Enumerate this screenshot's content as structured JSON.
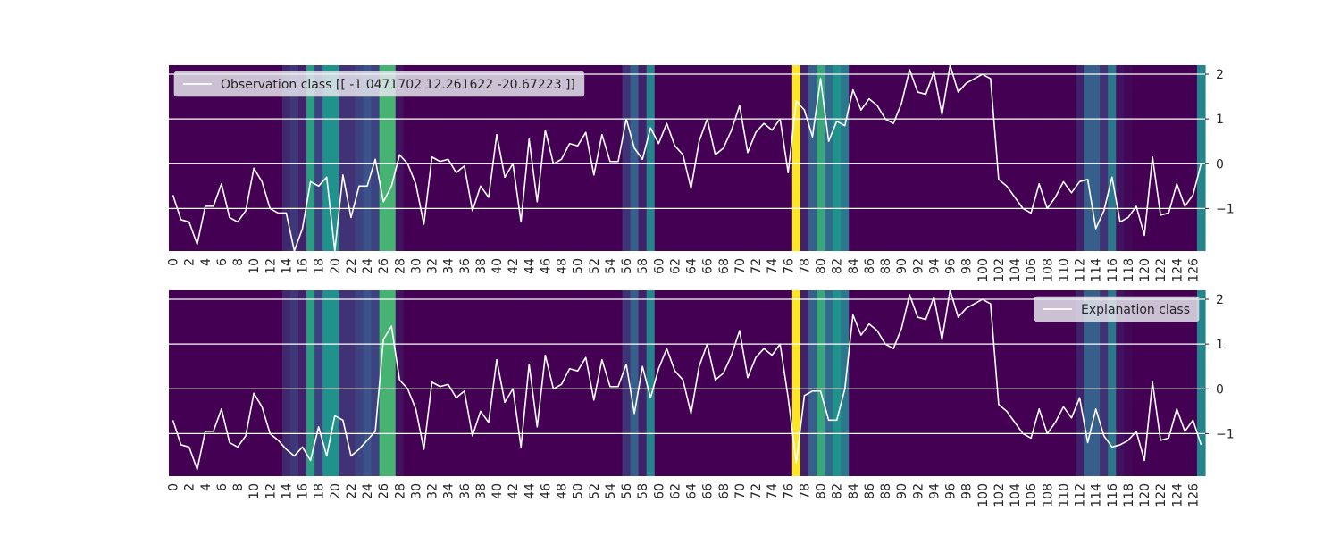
{
  "chart_data": [
    {
      "type": "line",
      "background": "heatmap",
      "legend": "Observation class [[ -1.0471702  12.261622  -20.67223  ]]",
      "legend_position": "upper-left",
      "x": [
        0,
        1,
        2,
        3,
        4,
        5,
        6,
        7,
        8,
        9,
        10,
        11,
        12,
        13,
        14,
        15,
        16,
        17,
        18,
        19,
        20,
        21,
        22,
        23,
        24,
        25,
        26,
        27,
        28,
        29,
        30,
        31,
        32,
        33,
        34,
        35,
        36,
        37,
        38,
        39,
        40,
        41,
        42,
        43,
        44,
        45,
        46,
        47,
        48,
        49,
        50,
        51,
        52,
        53,
        54,
        55,
        56,
        57,
        58,
        59,
        60,
        61,
        62,
        63,
        64,
        65,
        66,
        67,
        68,
        69,
        70,
        71,
        72,
        73,
        74,
        75,
        76,
        77,
        78,
        79,
        80,
        81,
        82,
        83,
        84,
        85,
        86,
        87,
        88,
        89,
        90,
        91,
        92,
        93,
        94,
        95,
        96,
        97,
        98,
        99,
        100,
        101,
        102,
        103,
        104,
        105,
        106,
        107,
        108,
        109,
        110,
        111,
        112,
        113,
        114,
        115,
        116,
        117,
        118,
        119,
        120,
        121,
        122,
        123,
        124,
        125,
        126,
        127
      ],
      "y": [
        -0.7,
        -1.25,
        -1.3,
        -1.8,
        -0.95,
        -0.95,
        -0.45,
        -1.2,
        -1.3,
        -1.05,
        -0.1,
        -0.4,
        -1.0,
        -1.1,
        -1.1,
        -1.95,
        -1.45,
        -0.4,
        -0.5,
        -0.3,
        -2.0,
        -0.25,
        -1.2,
        -0.5,
        -0.5,
        0.1,
        -0.85,
        -0.5,
        0.2,
        0.0,
        -0.45,
        -1.35,
        0.15,
        0.05,
        0.1,
        -0.2,
        -0.05,
        -1.05,
        -0.5,
        -0.75,
        0.65,
        -0.3,
        0.0,
        -1.3,
        0.55,
        -0.85,
        0.75,
        0.0,
        0.1,
        0.45,
        0.4,
        0.7,
        -0.25,
        0.65,
        0.05,
        0.05,
        1.0,
        0.35,
        0.1,
        0.8,
        0.45,
        0.9,
        0.4,
        0.2,
        -0.55,
        0.5,
        1.0,
        0.2,
        0.35,
        0.75,
        1.3,
        0.25,
        0.7,
        0.9,
        0.75,
        1.0,
        -0.2,
        1.4,
        1.2,
        0.6,
        1.9,
        0.5,
        0.95,
        0.85,
        1.65,
        1.2,
        1.45,
        1.3,
        1.0,
        0.9,
        1.35,
        2.1,
        1.6,
        1.55,
        2.05,
        1.1,
        2.25,
        1.6,
        1.8,
        1.9,
        2.0,
        1.9,
        -0.35,
        -0.5,
        -0.75,
        -1.0,
        -1.1,
        -0.45,
        -1.0,
        -0.75,
        -0.4,
        -0.65,
        -0.4,
        -0.35,
        -1.45,
        -1.05,
        -0.3,
        -1.3,
        -1.2,
        -0.95,
        -1.6,
        0.15,
        -1.15,
        -1.1,
        -0.45,
        -0.95,
        -0.7,
        0.0
      ],
      "heat": [
        0,
        0,
        0,
        0,
        0,
        0,
        0,
        0,
        0,
        0,
        0,
        0,
        0,
        0,
        0.12,
        0.17,
        0.1,
        0.55,
        0.2,
        0.5,
        0.5,
        0.15,
        0.15,
        0.2,
        0.25,
        0.2,
        0.65,
        0.65,
        0.05,
        0,
        0,
        0,
        0,
        0,
        0,
        0,
        0,
        0,
        0,
        0,
        0,
        0,
        0,
        0,
        0,
        0,
        0,
        0,
        0,
        0,
        0,
        0,
        0,
        0,
        0,
        0,
        0.15,
        0.3,
        0.1,
        0.45,
        0,
        0,
        0,
        0,
        0,
        0,
        0,
        0,
        0,
        0,
        0,
        0,
        0,
        0,
        0,
        0,
        0,
        1.0,
        0.1,
        0.3,
        0.6,
        0.35,
        0.5,
        0.4,
        0,
        0,
        0,
        0,
        0,
        0,
        0,
        0,
        0,
        0,
        0,
        0,
        0,
        0,
        0,
        0,
        0,
        0,
        0,
        0,
        0,
        0,
        0,
        0,
        0,
        0,
        0,
        0,
        0.1,
        0.3,
        0.3,
        0.15,
        0.4,
        0.05,
        0.02,
        0,
        0,
        0,
        0,
        0,
        0,
        0,
        0,
        0.45
      ],
      "xticks": [
        "0",
        "2",
        "4",
        "6",
        "8",
        "10",
        "12",
        "14",
        "16",
        "18",
        "20",
        "22",
        "24",
        "26",
        "28",
        "30",
        "32",
        "34",
        "36",
        "38",
        "40",
        "42",
        "44",
        "46",
        "48",
        "50",
        "52",
        "54",
        "56",
        "58",
        "60",
        "62",
        "64",
        "66",
        "68",
        "70",
        "72",
        "74",
        "76",
        "78",
        "80",
        "82",
        "84",
        "86",
        "88",
        "90",
        "92",
        "94",
        "96",
        "98",
        "100",
        "102",
        "104",
        "106",
        "108",
        "110",
        "112",
        "114",
        "116",
        "118",
        "120",
        "122",
        "124",
        "126"
      ],
      "yticks": [
        "2",
        "1",
        "0",
        "−1"
      ],
      "ytick_values": [
        2,
        1,
        0,
        -1
      ],
      "xlim": [
        0,
        128
      ],
      "ylim": [
        -1.95,
        2.2
      ],
      "colormap": "viridis",
      "line_color": "#ffffff"
    },
    {
      "type": "line",
      "background": "heatmap",
      "legend": "Explanation class",
      "legend_position": "upper-right",
      "x": [
        0,
        1,
        2,
        3,
        4,
        5,
        6,
        7,
        8,
        9,
        10,
        11,
        12,
        13,
        14,
        15,
        16,
        17,
        18,
        19,
        20,
        21,
        22,
        23,
        24,
        25,
        26,
        27,
        28,
        29,
        30,
        31,
        32,
        33,
        34,
        35,
        36,
        37,
        38,
        39,
        40,
        41,
        42,
        43,
        44,
        45,
        46,
        47,
        48,
        49,
        50,
        51,
        52,
        53,
        54,
        55,
        56,
        57,
        58,
        59,
        60,
        61,
        62,
        63,
        64,
        65,
        66,
        67,
        68,
        69,
        70,
        71,
        72,
        73,
        74,
        75,
        76,
        77,
        78,
        79,
        80,
        81,
        82,
        83,
        84,
        85,
        86,
        87,
        88,
        89,
        90,
        91,
        92,
        93,
        94,
        95,
        96,
        97,
        98,
        99,
        100,
        101,
        102,
        103,
        104,
        105,
        106,
        107,
        108,
        109,
        110,
        111,
        112,
        113,
        114,
        115,
        116,
        117,
        118,
        119,
        120,
        121,
        122,
        123,
        124,
        125,
        126,
        127
      ],
      "y": [
        -0.7,
        -1.25,
        -1.3,
        -1.8,
        -0.95,
        -0.95,
        -0.45,
        -1.2,
        -1.3,
        -1.05,
        -0.1,
        -0.4,
        -1.0,
        -1.15,
        -1.35,
        -1.5,
        -1.3,
        -1.6,
        -0.85,
        -1.5,
        -0.6,
        -0.7,
        -1.5,
        -1.35,
        -1.15,
        -0.95,
        1.1,
        1.4,
        0.2,
        0.0,
        -0.45,
        -1.35,
        0.15,
        0.05,
        0.1,
        -0.2,
        -0.05,
        -1.05,
        -0.5,
        -0.75,
        0.65,
        -0.3,
        0.0,
        -1.3,
        0.55,
        -0.85,
        0.75,
        0.0,
        0.1,
        0.45,
        0.4,
        0.7,
        -0.25,
        0.65,
        0.05,
        0.05,
        0.55,
        -0.55,
        0.5,
        -0.2,
        0.45,
        0.9,
        0.4,
        0.2,
        -0.55,
        0.5,
        1.0,
        0.2,
        0.35,
        0.75,
        1.3,
        0.25,
        0.7,
        0.9,
        0.75,
        1.0,
        -0.2,
        -1.65,
        -0.15,
        -0.05,
        -0.05,
        -0.7,
        -0.7,
        0.0,
        1.65,
        1.2,
        1.45,
        1.3,
        1.0,
        0.9,
        1.35,
        2.1,
        1.6,
        1.55,
        2.05,
        1.1,
        2.25,
        1.6,
        1.8,
        1.9,
        2.0,
        1.9,
        -0.35,
        -0.5,
        -0.75,
        -1.0,
        -1.1,
        -0.45,
        -1.0,
        -0.75,
        -0.4,
        -0.65,
        -0.2,
        -1.2,
        -0.45,
        -1.05,
        -1.3,
        -1.25,
        -1.15,
        -0.95,
        -1.6,
        0.15,
        -1.15,
        -1.1,
        -0.45,
        -0.95,
        -0.7,
        -1.25
      ],
      "heat": [
        0,
        0,
        0,
        0,
        0,
        0,
        0,
        0,
        0,
        0,
        0,
        0,
        0,
        0,
        0.12,
        0.17,
        0.1,
        0.55,
        0.2,
        0.5,
        0.5,
        0.15,
        0.15,
        0.2,
        0.25,
        0.2,
        0.65,
        0.65,
        0.05,
        0,
        0,
        0,
        0,
        0,
        0,
        0,
        0,
        0,
        0,
        0,
        0,
        0,
        0,
        0,
        0,
        0,
        0,
        0,
        0,
        0,
        0,
        0,
        0,
        0,
        0,
        0,
        0.15,
        0.3,
        0.1,
        0.45,
        0,
        0,
        0,
        0,
        0,
        0,
        0,
        0,
        0,
        0,
        0,
        0,
        0,
        0,
        0,
        0,
        0,
        1.0,
        0.1,
        0.3,
        0.6,
        0.35,
        0.5,
        0.4,
        0,
        0,
        0,
        0,
        0,
        0,
        0,
        0,
        0,
        0,
        0,
        0,
        0,
        0,
        0,
        0,
        0,
        0,
        0,
        0,
        0,
        0,
        0,
        0,
        0,
        0,
        0,
        0,
        0.1,
        0.3,
        0.3,
        0.15,
        0.4,
        0.05,
        0.02,
        0,
        0,
        0,
        0,
        0,
        0,
        0,
        0,
        0.45
      ],
      "xticks": [
        "0",
        "2",
        "4",
        "6",
        "8",
        "10",
        "12",
        "14",
        "16",
        "18",
        "20",
        "22",
        "24",
        "26",
        "28",
        "30",
        "32",
        "34",
        "36",
        "38",
        "40",
        "42",
        "44",
        "46",
        "48",
        "50",
        "52",
        "54",
        "56",
        "58",
        "60",
        "62",
        "64",
        "66",
        "68",
        "70",
        "72",
        "74",
        "76",
        "78",
        "80",
        "82",
        "84",
        "86",
        "88",
        "90",
        "92",
        "94",
        "96",
        "98",
        "100",
        "102",
        "104",
        "106",
        "108",
        "110",
        "112",
        "114",
        "116",
        "118",
        "120",
        "122",
        "124",
        "126"
      ],
      "yticks": [
        "2",
        "1",
        "0",
        "−1"
      ],
      "ytick_values": [
        2,
        1,
        0,
        -1
      ],
      "xlim": [
        0,
        128
      ],
      "ylim": [
        -1.95,
        2.2
      ],
      "colormap": "viridis",
      "line_color": "#ffffff"
    }
  ]
}
